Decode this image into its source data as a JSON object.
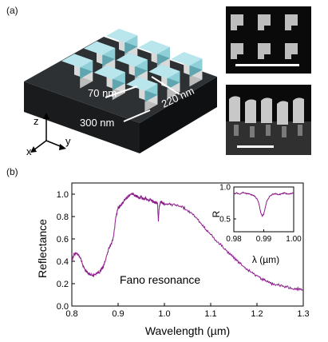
{
  "panel_a": {
    "label": "(a)",
    "dimensions": {
      "height": "70 nm",
      "period": "220 nm",
      "width": "300 nm"
    },
    "axes": {
      "z": "z",
      "x": "x",
      "y": "y"
    },
    "colors": {
      "substrate_top": "#2e3133",
      "substrate_side": "#161718",
      "glass": "#8fd0d8",
      "silicon": "#d9d9d9"
    }
  },
  "panel_b": {
    "label": "(b)",
    "annotation": "Fano resonance"
  },
  "chart_data": [
    {
      "type": "line",
      "xlabel": "Wavelength (µm)",
      "ylabel": "Reflectance",
      "xlim": [
        0.8,
        1.3
      ],
      "ylim": [
        0.0,
        1.1
      ],
      "xticks": [
        "0.8",
        "0.9",
        "1.0",
        "1.1",
        "1.2",
        "1.3"
      ],
      "yticks": [
        "0.0",
        "0.2",
        "0.4",
        "0.6",
        "0.8",
        "1.0"
      ],
      "color": "#8b1a8b",
      "series": [
        {
          "x": [
            0.8,
            0.805,
            0.81,
            0.815,
            0.82,
            0.825,
            0.83,
            0.835,
            0.84,
            0.845,
            0.85,
            0.855,
            0.86,
            0.865,
            0.87,
            0.875,
            0.88,
            0.885,
            0.89,
            0.895,
            0.9,
            0.905,
            0.91,
            0.915,
            0.92,
            0.925,
            0.93,
            0.935,
            0.94,
            0.945,
            0.95,
            0.955,
            0.96,
            0.965,
            0.97,
            0.975,
            0.98,
            0.985,
            0.987,
            0.989,
            0.991,
            0.993,
            0.995,
            1.0,
            1.01,
            1.02,
            1.03,
            1.04,
            1.05,
            1.06,
            1.07,
            1.08,
            1.09,
            1.1,
            1.11,
            1.12,
            1.13,
            1.14,
            1.15,
            1.16,
            1.17,
            1.18,
            1.19,
            1.2,
            1.21,
            1.22,
            1.23,
            1.24,
            1.25,
            1.26,
            1.27,
            1.28,
            1.29,
            1.3
          ],
          "y": [
            0.42,
            0.47,
            0.48,
            0.46,
            0.42,
            0.36,
            0.32,
            0.3,
            0.29,
            0.28,
            0.29,
            0.3,
            0.31,
            0.34,
            0.38,
            0.45,
            0.52,
            0.56,
            0.62,
            0.8,
            0.88,
            0.9,
            0.93,
            0.96,
            0.98,
            1.0,
            1.01,
            1.0,
            0.99,
            0.97,
            0.98,
            0.96,
            0.97,
            0.95,
            0.96,
            0.94,
            0.93,
            0.92,
            0.77,
            0.9,
            0.93,
            0.94,
            0.93,
            0.92,
            0.92,
            0.91,
            0.9,
            0.89,
            0.86,
            0.83,
            0.79,
            0.74,
            0.69,
            0.65,
            0.6,
            0.56,
            0.52,
            0.48,
            0.44,
            0.4,
            0.36,
            0.33,
            0.3,
            0.28,
            0.25,
            0.23,
            0.21,
            0.2,
            0.19,
            0.18,
            0.17,
            0.16,
            0.16,
            0.15
          ]
        }
      ]
    },
    {
      "type": "line",
      "xlabel": "λ (µm)",
      "ylabel": "R",
      "xlim": [
        0.98,
        1.0
      ],
      "ylim": [
        0.3,
        1.0
      ],
      "xticks": [
        "0.98",
        "0.99",
        "1.00"
      ],
      "yticks": [
        "0.5",
        "1.0"
      ],
      "color": "#8b1a8b",
      "series": [
        {
          "x": [
            0.98,
            0.981,
            0.982,
            0.983,
            0.984,
            0.985,
            0.986,
            0.987,
            0.988,
            0.9885,
            0.989,
            0.9895,
            0.99,
            0.9905,
            0.991,
            0.992,
            0.993,
            0.994,
            0.995,
            0.996,
            0.997,
            0.998,
            0.999,
            1.0
          ],
          "y": [
            0.9,
            0.91,
            0.89,
            0.92,
            0.9,
            0.9,
            0.88,
            0.86,
            0.8,
            0.72,
            0.6,
            0.55,
            0.58,
            0.68,
            0.78,
            0.86,
            0.89,
            0.9,
            0.88,
            0.9,
            0.91,
            0.89,
            0.9,
            0.91
          ]
        }
      ]
    }
  ]
}
